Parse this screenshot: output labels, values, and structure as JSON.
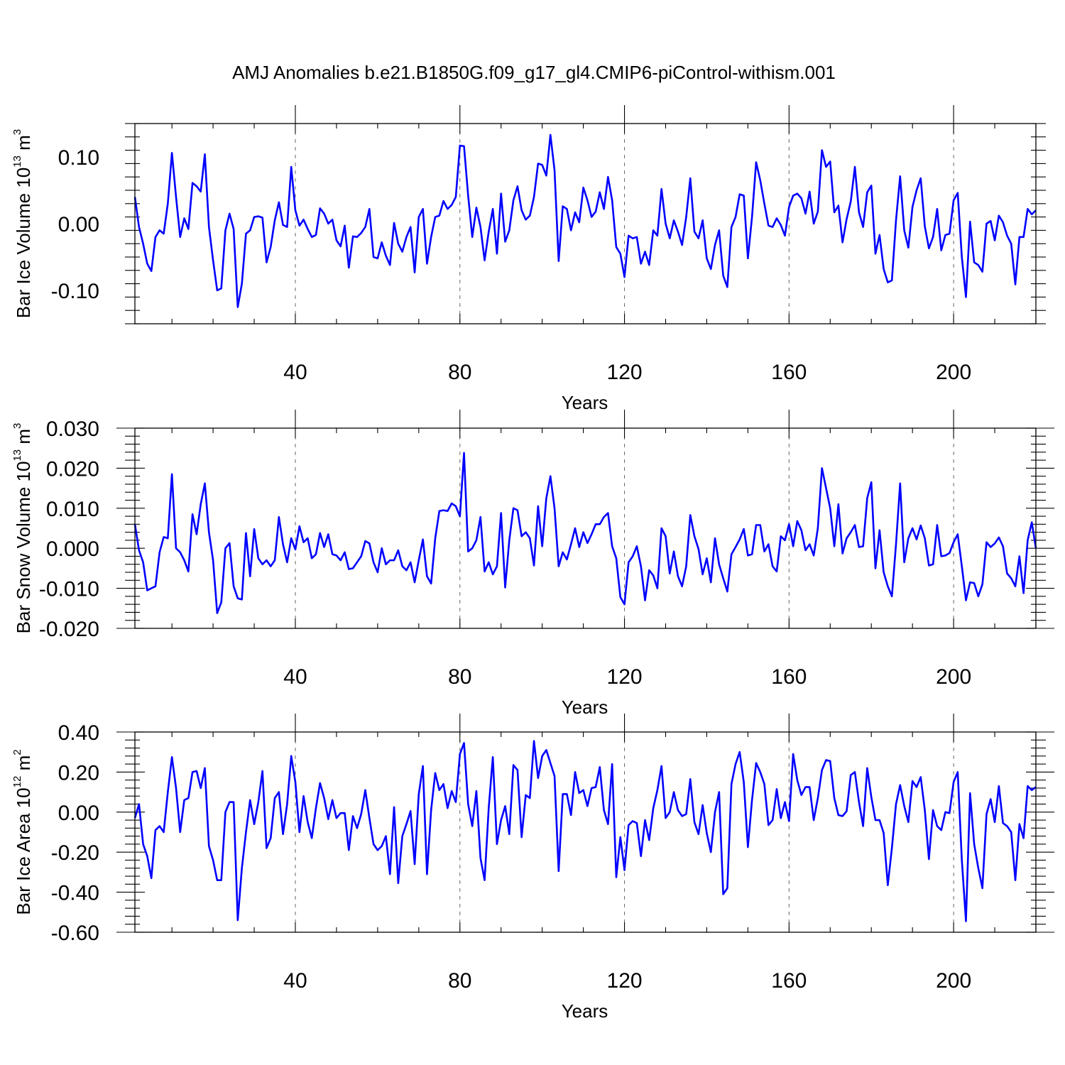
{
  "title": "AMJ Anomalies b.e21.B1850G.f09_g17_gl4.CMIP6-piControl-withism.001",
  "colors": {
    "line": "#0000ff",
    "frame": "#000000",
    "grid": "#666666"
  },
  "chart_data": [
    {
      "type": "line",
      "xlabel": "Years",
      "ylabel": {
        "main": "Bar Ice Volume 10",
        "sup": "13",
        "tail": " m",
        "sup2": "3"
      },
      "xlim": [
        1,
        220
      ],
      "ylim": [
        -0.15,
        0.15
      ],
      "xticks": [
        40,
        80,
        120,
        160,
        200
      ],
      "xtick_labels": [
        "40",
        "80",
        "120",
        "160",
        "200"
      ],
      "yticks": [
        -0.1,
        0.0,
        0.1
      ],
      "ytick_labels": [
        "-0.10",
        "0.00",
        "0.10"
      ],
      "grid": "vertical-dashed",
      "series": [
        {
          "x_start": 1,
          "values": [
            0.04,
            -0.005,
            -0.03,
            -0.06,
            -0.071,
            -0.02,
            -0.01,
            -0.015,
            0.03,
            0.106,
            0.04,
            -0.02,
            0.008,
            -0.008,
            0.061,
            0.056,
            0.048,
            0.104,
            -0.005,
            -0.055,
            -0.1,
            -0.097,
            -0.01,
            0.015,
            -0.008,
            -0.125,
            -0.09,
            -0.015,
            -0.01,
            0.01,
            0.011,
            0.009,
            -0.058,
            -0.035,
            0.005,
            0.032,
            -0.002,
            -0.005,
            0.085,
            0.02,
            -0.003,
            0.006,
            -0.008,
            -0.02,
            -0.017,
            0.023,
            0.015,
            0.0,
            0.006,
            -0.025,
            -0.034,
            -0.003,
            -0.066,
            -0.019,
            -0.02,
            -0.014,
            -0.005,
            0.022,
            -0.05,
            -0.052,
            -0.028,
            -0.048,
            -0.062,
            0.001,
            -0.03,
            -0.042,
            -0.02,
            -0.005,
            -0.073,
            0.01,
            0.022,
            -0.06,
            -0.02,
            0.01,
            0.012,
            0.034,
            0.022,
            0.028,
            0.04,
            0.117,
            0.116,
            0.042,
            -0.02,
            0.024,
            -0.005,
            -0.055,
            -0.012,
            0.022,
            -0.045,
            0.045,
            -0.027,
            -0.01,
            0.035,
            0.056,
            0.02,
            0.006,
            0.012,
            0.04,
            0.09,
            0.088,
            0.072,
            0.133,
            0.08,
            -0.056,
            0.026,
            0.022,
            -0.01,
            0.017,
            0.002,
            0.054,
            0.035,
            0.01,
            0.018,
            0.047,
            0.022,
            0.07,
            0.035,
            -0.035,
            -0.045,
            -0.08,
            -0.018,
            -0.022,
            -0.02,
            -0.06,
            -0.042,
            -0.062,
            -0.01,
            -0.018,
            0.052,
            0.0,
            -0.022,
            0.005,
            -0.012,
            -0.032,
            0.01,
            0.068,
            -0.012,
            -0.022,
            0.005,
            -0.052,
            -0.068,
            -0.032,
            -0.01,
            -0.078,
            -0.095,
            -0.005,
            0.01,
            0.044,
            0.042,
            -0.052,
            0.01,
            0.092,
            0.065,
            0.03,
            -0.003,
            -0.005,
            0.008,
            -0.002,
            -0.018,
            0.025,
            0.042,
            0.045,
            0.038,
            0.015,
            0.048,
            0.0,
            0.018,
            0.11,
            0.085,
            0.093,
            0.017,
            0.027,
            -0.028,
            0.007,
            0.033,
            0.085,
            0.017,
            -0.005,
            0.047,
            0.057,
            -0.045,
            -0.017,
            -0.068,
            -0.088,
            -0.085,
            0.005,
            0.071,
            -0.01,
            -0.036,
            0.025,
            0.05,
            0.068,
            -0.004,
            -0.037,
            -0.02,
            0.022,
            -0.04,
            -0.017,
            -0.015,
            0.035,
            0.046,
            -0.05,
            -0.11,
            0.003,
            -0.058,
            -0.062,
            -0.072,
            0.0,
            0.004,
            -0.025,
            0.012,
            0.002,
            -0.018,
            -0.03,
            -0.091,
            -0.02,
            -0.02,
            0.022,
            0.014,
            0.02
          ]
        }
      ]
    },
    {
      "type": "line",
      "xlabel": "Years",
      "ylabel": {
        "main": "Bar Snow Volume 10",
        "sup": "13",
        "tail": " m",
        "sup2": "3"
      },
      "xlim": [
        1,
        220
      ],
      "ylim": [
        -0.02,
        0.03
      ],
      "xticks": [
        40,
        80,
        120,
        160,
        200
      ],
      "xtick_labels": [
        "40",
        "80",
        "120",
        "160",
        "200"
      ],
      "yticks": [
        -0.02,
        -0.01,
        0.0,
        0.01,
        0.02,
        0.03
      ],
      "ytick_labels": [
        "-0.020",
        "-0.010",
        "0.000",
        "0.010",
        "0.020",
        "0.030"
      ],
      "grid": "vertical-dashed",
      "series": [
        {
          "x_start": 1,
          "values": [
            0.006,
            -0.0005,
            -0.0035,
            -0.0105,
            -0.01,
            -0.0095,
            -0.001,
            0.0028,
            0.0025,
            0.0185,
            0.0,
            -0.001,
            -0.003,
            -0.0058,
            0.0085,
            0.0035,
            0.011,
            0.0162,
            0.004,
            -0.003,
            -0.0162,
            -0.0135,
            0.0,
            0.0013,
            -0.0095,
            -0.0125,
            -0.0128,
            0.0038,
            -0.007,
            0.0048,
            -0.0025,
            -0.004,
            -0.003,
            -0.0045,
            -0.003,
            0.0078,
            0.001,
            -0.0035,
            0.0025,
            -0.0003,
            0.0055,
            0.0015,
            0.0025,
            -0.0025,
            -0.0015,
            0.0038,
            0.0003,
            0.0035,
            -0.0015,
            -0.0018,
            -0.003,
            -0.001,
            -0.0052,
            -0.005,
            -0.0035,
            -0.002,
            0.0018,
            0.0012,
            -0.0035,
            -0.006,
            0.0,
            -0.004,
            -0.003,
            -0.003,
            -0.0005,
            -0.0045,
            -0.0055,
            -0.0035,
            -0.0085,
            -0.003,
            0.0022,
            -0.007,
            -0.0088,
            0.0025,
            0.0093,
            0.0095,
            0.0093,
            0.0112,
            0.0105,
            0.008,
            0.0238,
            -0.0008,
            0.0,
            0.002,
            0.0078,
            -0.0058,
            -0.0035,
            -0.0065,
            -0.0045,
            0.0088,
            -0.0098,
            0.002,
            0.01,
            0.0095,
            0.003,
            0.004,
            0.0025,
            -0.0043,
            0.0105,
            0.0005,
            0.0125,
            0.018,
            0.01,
            -0.0045,
            -0.001,
            -0.0028,
            0.001,
            0.005,
            0.0003,
            0.004,
            0.0013,
            0.0035,
            0.006,
            0.006,
            0.0078,
            0.0088,
            0.0005,
            -0.0025,
            -0.0122,
            -0.014,
            -0.0035,
            -0.002,
            0.0005,
            -0.0045,
            -0.013,
            -0.0055,
            -0.0068,
            -0.01,
            0.005,
            0.003,
            -0.0063,
            -0.0008,
            -0.007,
            -0.0095,
            -0.0045,
            0.0083,
            0.003,
            -0.0002,
            -0.0065,
            -0.0025,
            -0.0085,
            0.0025,
            -0.004,
            -0.0075,
            -0.0108,
            -0.0015,
            0.0003,
            0.0022,
            0.0048,
            -0.0018,
            -0.0015,
            0.0058,
            0.0058,
            -0.0008,
            0.001,
            -0.0045,
            -0.0058,
            0.003,
            0.002,
            0.006,
            0.0005,
            0.0068,
            0.0045,
            -0.0005,
            0.001,
            -0.0018,
            0.005,
            0.02,
            0.015,
            0.01,
            0.0005,
            0.011,
            -0.0013,
            0.0025,
            0.004,
            0.0058,
            0.0003,
            0.0005,
            0.0125,
            0.0165,
            -0.005,
            0.0045,
            -0.006,
            -0.0095,
            -0.012,
            0.001,
            0.0162,
            -0.0035,
            0.0025,
            0.005,
            0.0022,
            0.0057,
            0.0025,
            -0.0043,
            -0.004,
            0.0058,
            -0.002,
            -0.0018,
            -0.0012,
            0.0015,
            0.0035,
            -0.0045,
            -0.013,
            -0.0085,
            -0.0087,
            -0.012,
            -0.009,
            0.0015,
            0.0003,
            0.0012,
            0.0027,
            0.0005,
            -0.0063,
            -0.0075,
            -0.0095,
            -0.002,
            -0.0112,
            0.002,
            0.0065,
            0.0
          ]
        }
      ]
    },
    {
      "type": "line",
      "xlabel": "Years",
      "ylabel": {
        "main": "Bar Ice Area 10",
        "sup": "12",
        "tail": " m",
        "sup2": "2"
      },
      "xlim": [
        1,
        220
      ],
      "ylim": [
        -0.6,
        0.4
      ],
      "xticks": [
        40,
        80,
        120,
        160,
        200
      ],
      "xtick_labels": [
        "40",
        "80",
        "120",
        "160",
        "200"
      ],
      "yticks": [
        -0.6,
        -0.4,
        -0.2,
        0.0,
        0.2,
        0.4
      ],
      "ytick_labels": [
        "-0.60",
        "-0.40",
        "-0.20",
        "0.00",
        "0.20",
        "0.40"
      ],
      "grid": "vertical-dashed",
      "series": [
        {
          "x_start": 1,
          "values": [
            -0.03,
            0.04,
            -0.16,
            -0.22,
            -0.33,
            -0.09,
            -0.07,
            -0.1,
            0.1,
            0.275,
            0.12,
            -0.1,
            0.06,
            0.07,
            0.2,
            0.205,
            0.12,
            0.22,
            -0.17,
            -0.24,
            -0.34,
            -0.34,
            0.0,
            0.05,
            0.05,
            -0.54,
            -0.28,
            -0.1,
            0.06,
            -0.06,
            0.05,
            0.205,
            -0.18,
            -0.13,
            0.07,
            0.1,
            -0.11,
            0.04,
            0.28,
            0.15,
            -0.1,
            0.08,
            -0.05,
            -0.13,
            0.02,
            0.145,
            0.07,
            -0.035,
            0.06,
            -0.03,
            -0.005,
            -0.005,
            -0.19,
            -0.02,
            -0.08,
            -0.01,
            0.11,
            -0.03,
            -0.16,
            -0.19,
            -0.17,
            -0.12,
            -0.31,
            0.025,
            -0.355,
            -0.12,
            -0.06,
            0.005,
            -0.26,
            0.09,
            0.23,
            -0.31,
            0.01,
            0.195,
            0.11,
            0.14,
            0.02,
            0.105,
            0.05,
            0.29,
            0.345,
            0.04,
            -0.07,
            0.105,
            -0.23,
            -0.34,
            0.02,
            0.275,
            -0.16,
            -0.04,
            0.03,
            -0.11,
            0.235,
            0.21,
            -0.125,
            0.085,
            0.07,
            0.355,
            0.17,
            0.28,
            0.31,
            0.245,
            0.18,
            -0.295,
            0.09,
            0.09,
            -0.015,
            0.2,
            0.095,
            0.11,
            0.03,
            0.12,
            0.125,
            0.225,
            0.01,
            -0.06,
            0.24,
            -0.325,
            -0.125,
            -0.29,
            -0.065,
            -0.045,
            -0.055,
            -0.22,
            -0.04,
            -0.14,
            0.02,
            0.11,
            0.23,
            -0.03,
            0.0,
            0.1,
            0.01,
            -0.02,
            -0.01,
            0.165,
            -0.05,
            -0.11,
            0.035,
            -0.105,
            -0.2,
            0.0,
            0.1,
            -0.41,
            -0.38,
            0.14,
            0.24,
            0.3,
            0.15,
            -0.175,
            0.06,
            0.245,
            0.2,
            0.14,
            -0.065,
            -0.04,
            0.115,
            -0.03,
            0.05,
            -0.045,
            0.29,
            0.16,
            0.085,
            0.125,
            0.125,
            -0.04,
            0.07,
            0.21,
            0.26,
            0.255,
            0.07,
            -0.015,
            -0.02,
            0.005,
            0.185,
            0.2,
            0.05,
            -0.07,
            0.22,
            0.075,
            -0.04,
            -0.04,
            -0.105,
            -0.365,
            -0.18,
            0.04,
            0.135,
            0.03,
            -0.05,
            0.155,
            0.125,
            0.175,
            0.01,
            -0.235,
            0.01,
            -0.07,
            -0.09,
            0.0,
            -0.005,
            0.15,
            0.2,
            -0.24,
            -0.545,
            0.095,
            -0.16,
            -0.28,
            -0.38,
            -0.01,
            0.065,
            -0.05,
            0.13,
            -0.055,
            -0.07,
            -0.1,
            -0.34,
            -0.06,
            -0.13,
            0.13,
            0.11,
            0.125
          ]
        }
      ]
    }
  ]
}
